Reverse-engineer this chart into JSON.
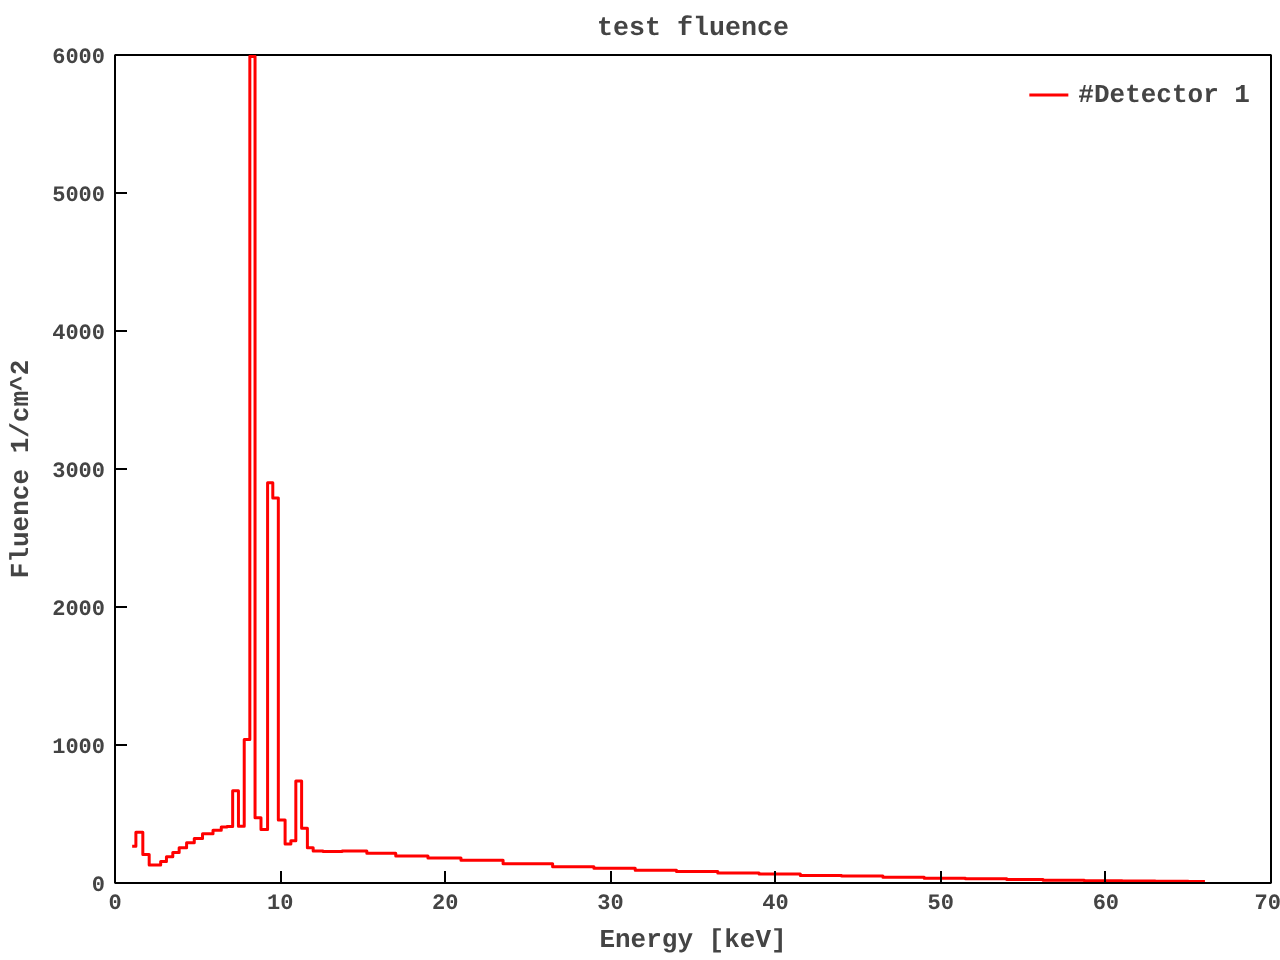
{
  "chart_data": {
    "type": "step",
    "title": "test fluence",
    "xlabel": "Energy [keV]",
    "ylabel": "Fluence 1/cm^2",
    "xlim": [
      0,
      70
    ],
    "ylim": [
      0,
      6000
    ],
    "xticks": [
      0,
      10,
      20,
      30,
      40,
      50,
      60,
      70
    ],
    "yticks": [
      0,
      1000,
      2000,
      3000,
      4000,
      5000,
      6000
    ],
    "grid": false,
    "legend": "top right",
    "marker": "none",
    "line_style": "solid",
    "series": [
      {
        "name": "#Detector 1",
        "color": "#ff0000",
        "x": [
          1.04,
          1.49,
          1.88,
          2.26,
          2.6,
          2.93,
          3.3,
          3.7,
          4.07,
          4.6,
          5.0,
          5.6,
          6.27,
          6.6,
          6.95,
          7.3,
          7.65,
          8.0,
          8.33,
          8.63,
          9.05,
          9.43,
          9.68,
          10.1,
          10.5,
          10.8,
          11.1,
          11.5,
          11.8,
          12.2,
          13,
          14.5,
          16,
          18,
          19.9,
          22,
          25,
          28,
          30,
          33,
          35,
          38,
          40,
          43,
          45,
          48,
          50,
          53,
          55,
          57.4,
          60,
          62,
          64,
          66
        ],
        "values": [
          267,
          367,
          207,
          131,
          131,
          155,
          191,
          221,
          256,
          292,
          322,
          357,
          382,
          405,
          410,
          668,
          412,
          1040,
          5990,
          472,
          387,
          2900,
          2790,
          457,
          282,
          306,
          739,
          397,
          256,
          231,
          228,
          232,
          215,
          195,
          181,
          165,
          140,
          118,
          106,
          92,
          84,
          72,
          65,
          55,
          50,
          42,
          35,
          30,
          25,
          20,
          17,
          15,
          12,
          10
        ]
      }
    ]
  }
}
